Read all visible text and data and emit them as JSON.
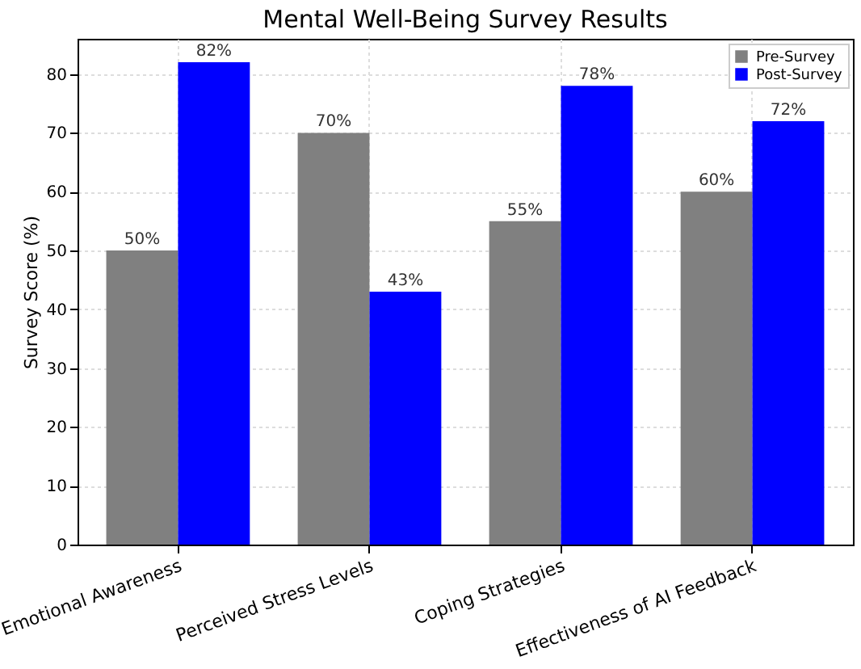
{
  "chart_data": {
    "type": "bar",
    "title": "Mental Well-Being Survey Results",
    "ylabel": "Survey Score (%)",
    "categories": [
      "Emotional Awareness",
      "Perceived Stress Levels",
      "Coping Strategies",
      "Effectiveness of AI Feedback"
    ],
    "series": [
      {
        "name": "Pre-Survey",
        "color": "#808080",
        "values": [
          50,
          70,
          55,
          60
        ],
        "value_labels": [
          "50%",
          "70%",
          "55%",
          "60%"
        ]
      },
      {
        "name": "Post-Survey",
        "color": "#0000ff",
        "values": [
          82,
          43,
          78,
          72
        ],
        "value_labels": [
          "82%",
          "43%",
          "78%",
          "72%"
        ]
      }
    ],
    "ylim": [
      0,
      86
    ],
    "yticks": [
      0,
      10,
      20,
      30,
      40,
      50,
      60,
      70,
      80
    ],
    "grid": true,
    "legend": "top right"
  }
}
